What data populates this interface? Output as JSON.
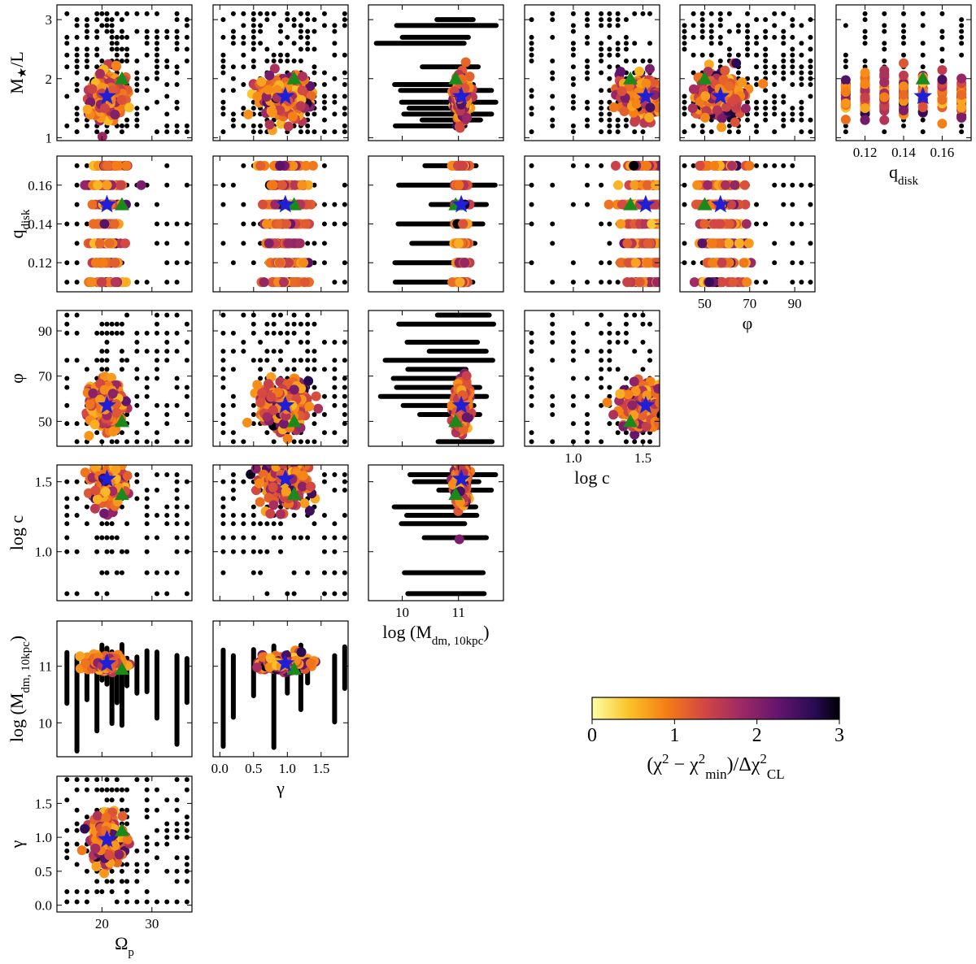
{
  "chart_data": {
    "type": "scatter",
    "title": "",
    "description_matrix": "corner plot of model grid chi-square",
    "parameters": [
      {
        "key": "omega_p",
        "label_main": "Ω",
        "label_sub": "p",
        "ticks": [
          20,
          30
        ],
        "tick_labels": [
          "20",
          "30"
        ],
        "lim": [
          11,
          38
        ]
      },
      {
        "key": "gamma",
        "label_main": "γ",
        "label_sub": "",
        "ticks": [
          0.0,
          0.5,
          1.0,
          1.5
        ],
        "tick_labels": [
          "0.0",
          "0.5",
          "1.0",
          "1.5"
        ],
        "lim": [
          -0.1,
          1.9
        ]
      },
      {
        "key": "log_mdm",
        "label_main": "log (M",
        "label_sub": "dm, 10kpc",
        "label_tail": ")",
        "ticks": [
          10,
          11
        ],
        "tick_labels": [
          "10",
          "11"
        ],
        "lim": [
          9.4,
          11.8
        ]
      },
      {
        "key": "log_c",
        "label_main": "log c",
        "label_sub": "",
        "ticks": [
          1.0,
          1.5
        ],
        "tick_labels": [
          "1.0",
          "1.5"
        ],
        "lim": [
          0.65,
          1.62
        ]
      },
      {
        "key": "phi",
        "label_main": "φ",
        "label_sub": "",
        "ticks": [
          50,
          70,
          90
        ],
        "tick_labels": [
          "50",
          "70",
          "90"
        ],
        "lim": [
          39,
          99
        ]
      },
      {
        "key": "q_disk",
        "label_main": "q",
        "label_sub": "disk",
        "ticks": [
          0.12,
          0.14,
          0.16
        ],
        "tick_labels": [
          "0.12",
          "0.14",
          "0.16"
        ],
        "lim": [
          0.105,
          0.175
        ]
      },
      {
        "key": "ml",
        "label_main": "M",
        "label_sub": "★",
        "label_tail": "/L",
        "ticks": [
          1,
          2,
          3
        ],
        "tick_labels": [
          "1",
          "2",
          "3"
        ],
        "lim": [
          0.95,
          3.25
        ]
      }
    ],
    "best_fit_star": {
      "omega_p": 21,
      "gamma": 0.97,
      "log_mdm": 11.05,
      "log_c": 1.52,
      "phi": 57,
      "q_disk": 0.15,
      "ml": 1.7
    },
    "reference_triangle": {
      "omega_p": 24,
      "gamma": 1.1,
      "log_mdm": 10.95,
      "log_c": 1.41,
      "phi": 50,
      "q_disk": 0.15,
      "ml": 2.0
    },
    "colorbar": {
      "label": "(χ² − χ²min)/Δχ²CL",
      "label_main": "(χ",
      "label_sup1": "2",
      "label_mid": " − χ",
      "label_sup2": "2",
      "label_sub2": "min",
      "label_tail": ")/Δχ",
      "label_sup3": "2",
      "label_sub3": "CL",
      "ticks": [
        0,
        1,
        2,
        3
      ],
      "tick_labels": [
        "0",
        "1",
        "2",
        "3"
      ],
      "range": [
        0,
        3
      ],
      "colormap": "inferno_r"
    },
    "colors": {
      "star": "#1f1fd8",
      "triangle": "#1a8a1a",
      "grid_point": "#000000"
    }
  }
}
